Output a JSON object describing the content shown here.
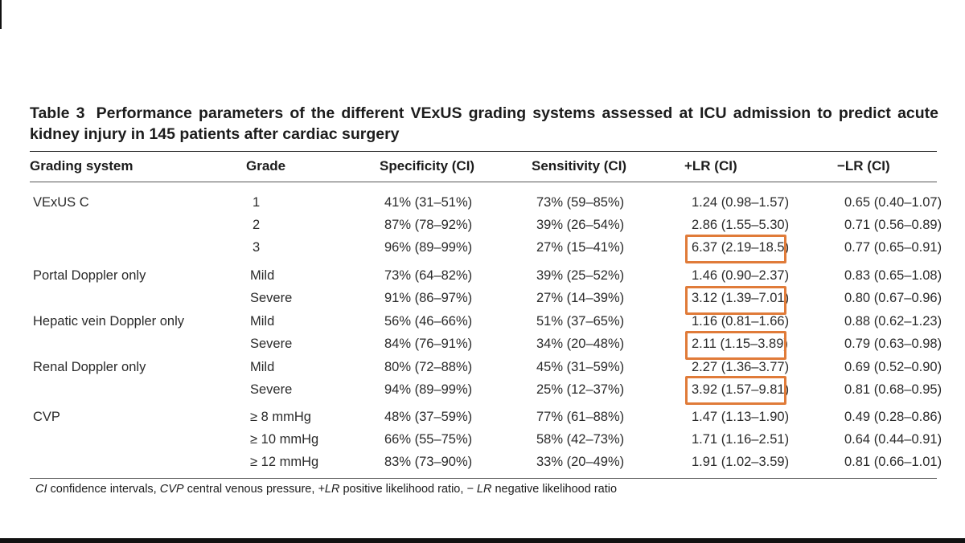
{
  "caption": {
    "label": "Table 3",
    "text": "Performance parameters of the different VExUS grading systems assessed at ICU admission to predict acute kidney injury in 145 patients after cardiac surgery"
  },
  "headers": {
    "system": "Grading system",
    "grade": "Grade",
    "spec": "Specificity (CI)",
    "sens": "Sensitivity (CI)",
    "plr": "+LR (CI)",
    "nlr": "−LR (CI)"
  },
  "rows": [
    {
      "system": "VExUS C",
      "grade": "1",
      "spec": "41% (31–51%)",
      "sens": "73% (59–85%)",
      "plr": "1.24 (0.98–1.57)",
      "nlr": "0.65 (0.40–1.07)"
    },
    {
      "system": "",
      "grade": "2",
      "spec": "87% (78–92%)",
      "sens": "39% (26–54%)",
      "plr": "2.86 (1.55–5.30)",
      "nlr": "0.71 (0.56–0.89)"
    },
    {
      "system": "",
      "grade": "3",
      "spec": "96% (89–99%)",
      "sens": "27% (15–41%)",
      "plr": "6.37 (2.19–18.5)",
      "nlr": "0.77 (0.65–0.91)"
    },
    {
      "system": "Portal Doppler only",
      "grade": "Mild",
      "spec": "73% (64–82%)",
      "sens": "39% (25–52%)",
      "plr": "1.46 (0.90–2.37)",
      "nlr": "0.83 (0.65–1.08)"
    },
    {
      "system": "",
      "grade": "Severe",
      "spec": "91% (86–97%)",
      "sens": "27% (14–39%)",
      "plr": "3.12 (1.39–7.01)",
      "nlr": "0.80 (0.67–0.96)"
    },
    {
      "system": "Hepatic vein Doppler only",
      "grade": "Mild",
      "spec": "56% (46–66%)",
      "sens": "51% (37–65%)",
      "plr": "1.16 (0.81–1.66)",
      "nlr": "0.88 (0.62–1.23)"
    },
    {
      "system": "",
      "grade": "Severe",
      "spec": "84% (76–91%)",
      "sens": "34% (20–48%)",
      "plr": "2.11 (1.15–3.89)",
      "nlr": "0.79 (0.63–0.98)"
    },
    {
      "system": "Renal Doppler only",
      "grade": "Mild",
      "spec": "80% (72–88%)",
      "sens": "45% (31–59%)",
      "plr": "2.27 (1.36–3.77)",
      "nlr": "0.69 (0.52–0.90)"
    },
    {
      "system": "",
      "grade": "Severe",
      "spec": "94% (89–99%)",
      "sens": "25% (12–37%)",
      "plr": "3.92 (1.57–9.81)",
      "nlr": "0.81 (0.68–0.95)"
    },
    {
      "system": "CVP",
      "grade": "≥ 8 mmHg",
      "spec": "48% (37–59%)",
      "sens": "77% (61–88%)",
      "plr": "1.47 (1.13–1.90)",
      "nlr": "0.49 (0.28–0.86)"
    },
    {
      "system": "",
      "grade": "≥ 10 mmHg",
      "spec": "66% (55–75%)",
      "sens": "58% (42–73%)",
      "plr": "1.71 (1.16–2.51)",
      "nlr": "0.64 (0.44–0.91)"
    },
    {
      "system": "",
      "grade": "≥ 12 mmHg",
      "spec": "83% (73–90%)",
      "sens": "33% (20–49%)",
      "plr": "1.91 (1.02–3.59)",
      "nlr": "0.81 (0.66–1.01)"
    }
  ],
  "highlight_color": "#e07b39",
  "footnote": {
    "ci_abbr": "CI",
    "ci_text": " confidence intervals, ",
    "cvp_abbr": "CVP",
    "cvp_text": " central venous pressure, ",
    "plr_abbr": "+LR",
    "plr_text": " positive likelihood ratio, ",
    "nlr_abbr": "− LR",
    "nlr_text": " negative likelihood ratio"
  }
}
